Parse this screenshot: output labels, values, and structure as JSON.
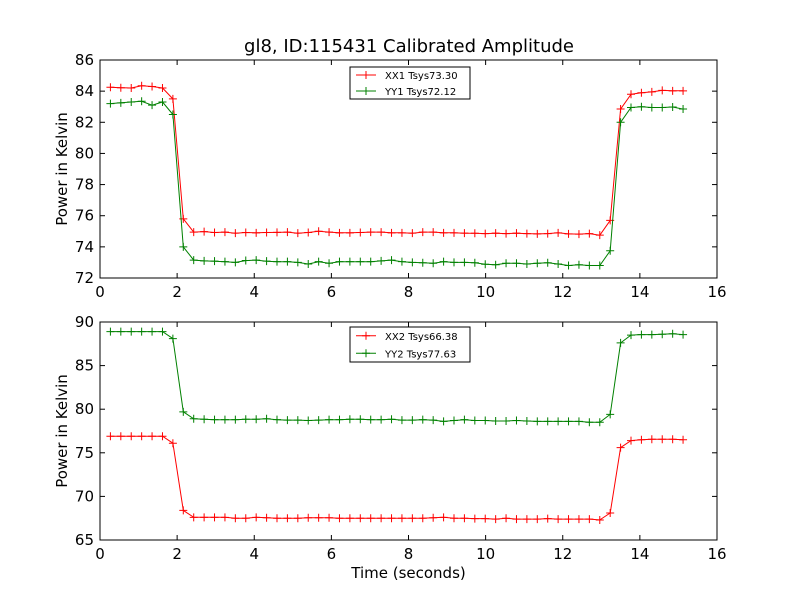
{
  "figure": {
    "title": "gl8, ID:115431 Calibrated Amplitude"
  },
  "chart_data": [
    {
      "type": "line",
      "ylabel": "Power in Kelvin",
      "xlabel": "",
      "xlim": [
        0,
        16
      ],
      "ylim": [
        72,
        86
      ],
      "xticks": [
        0,
        2,
        4,
        6,
        8,
        10,
        12,
        14,
        16
      ],
      "yticks": [
        72,
        74,
        76,
        78,
        80,
        82,
        84,
        86
      ],
      "legend_position": "top-center",
      "grid": false,
      "x": [
        0.27,
        0.54,
        0.81,
        1.08,
        1.35,
        1.62,
        1.89,
        2.16,
        2.43,
        2.7,
        2.97,
        3.24,
        3.51,
        3.78,
        4.05,
        4.32,
        4.59,
        4.86,
        5.13,
        5.4,
        5.67,
        5.94,
        6.21,
        6.48,
        6.75,
        7.02,
        7.29,
        7.56,
        7.83,
        8.1,
        8.37,
        8.64,
        8.91,
        9.18,
        9.45,
        9.72,
        9.99,
        10.26,
        10.53,
        10.8,
        11.07,
        11.34,
        11.61,
        11.88,
        12.15,
        12.42,
        12.69,
        12.96,
        13.23,
        13.5,
        13.77,
        14.04,
        14.31,
        14.58,
        14.85,
        15.12
      ],
      "series": [
        {
          "name": "XX1 Tsys73.30",
          "color": "#ff0000",
          "values": [
            84.25,
            84.22,
            84.2,
            84.35,
            84.3,
            84.2,
            83.5,
            75.8,
            74.95,
            74.98,
            74.92,
            74.95,
            74.88,
            74.92,
            74.9,
            74.92,
            74.93,
            74.95,
            74.88,
            74.92,
            75.0,
            74.95,
            74.9,
            74.9,
            74.92,
            74.95,
            74.95,
            74.9,
            74.9,
            74.88,
            74.95,
            74.95,
            74.9,
            74.9,
            74.88,
            74.87,
            74.85,
            74.88,
            74.85,
            74.88,
            74.85,
            74.83,
            74.85,
            74.9,
            74.83,
            74.82,
            74.85,
            74.75,
            75.7,
            82.85,
            83.8,
            83.9,
            83.95,
            84.05,
            84.02,
            84.02
          ]
        },
        {
          "name": "YY1 Tsys72.12",
          "color": "#008000",
          "values": [
            83.2,
            83.25,
            83.3,
            83.35,
            83.1,
            83.3,
            82.5,
            74.0,
            73.15,
            73.1,
            73.08,
            73.05,
            73.0,
            73.12,
            73.15,
            73.08,
            73.05,
            73.05,
            73.0,
            72.9,
            73.05,
            72.95,
            73.05,
            73.05,
            73.05,
            73.05,
            73.1,
            73.15,
            73.05,
            73.0,
            72.98,
            72.95,
            73.05,
            73.0,
            73.0,
            72.98,
            72.88,
            72.85,
            72.95,
            72.95,
            72.9,
            72.95,
            72.98,
            72.9,
            72.8,
            72.85,
            72.8,
            72.8,
            73.75,
            82.0,
            82.95,
            83.0,
            82.95,
            82.95,
            82.98,
            82.85
          ]
        }
      ]
    },
    {
      "type": "line",
      "ylabel": "Power in Kelvin",
      "xlabel": "Time (seconds)",
      "xlim": [
        0,
        16
      ],
      "ylim": [
        65,
        90
      ],
      "xticks": [
        0,
        2,
        4,
        6,
        8,
        10,
        12,
        14,
        16
      ],
      "yticks": [
        65,
        70,
        75,
        80,
        85,
        90
      ],
      "legend_position": "top-center",
      "grid": false,
      "x": [
        0.27,
        0.54,
        0.81,
        1.08,
        1.35,
        1.62,
        1.89,
        2.16,
        2.43,
        2.7,
        2.97,
        3.24,
        3.51,
        3.78,
        4.05,
        4.32,
        4.59,
        4.86,
        5.13,
        5.4,
        5.67,
        5.94,
        6.21,
        6.48,
        6.75,
        7.02,
        7.29,
        7.56,
        7.83,
        8.1,
        8.37,
        8.64,
        8.91,
        9.18,
        9.45,
        9.72,
        9.99,
        10.26,
        10.53,
        10.8,
        11.07,
        11.34,
        11.61,
        11.88,
        12.15,
        12.42,
        12.69,
        12.96,
        13.23,
        13.5,
        13.77,
        14.04,
        14.31,
        14.58,
        14.85,
        15.12
      ],
      "series": [
        {
          "name": "XX2 Tsys66.38",
          "color": "#ff0000",
          "values": [
            76.9,
            76.9,
            76.9,
            76.9,
            76.9,
            76.9,
            76.1,
            68.4,
            67.6,
            67.6,
            67.6,
            67.6,
            67.5,
            67.5,
            67.6,
            67.55,
            67.5,
            67.5,
            67.5,
            67.55,
            67.55,
            67.55,
            67.5,
            67.5,
            67.5,
            67.5,
            67.5,
            67.5,
            67.5,
            67.5,
            67.5,
            67.55,
            67.6,
            67.5,
            67.5,
            67.45,
            67.45,
            67.4,
            67.5,
            67.4,
            67.4,
            67.4,
            67.45,
            67.4,
            67.4,
            67.4,
            67.4,
            67.3,
            68.1,
            75.6,
            76.4,
            76.5,
            76.55,
            76.55,
            76.55,
            76.5
          ]
        },
        {
          "name": "YY2 Tsys77.63",
          "color": "#008000",
          "values": [
            88.9,
            88.9,
            88.9,
            88.9,
            88.9,
            88.9,
            88.1,
            79.7,
            78.9,
            78.85,
            78.8,
            78.8,
            78.8,
            78.85,
            78.85,
            78.9,
            78.8,
            78.75,
            78.75,
            78.7,
            78.75,
            78.8,
            78.8,
            78.85,
            78.85,
            78.8,
            78.8,
            78.85,
            78.75,
            78.75,
            78.8,
            78.75,
            78.6,
            78.7,
            78.8,
            78.7,
            78.7,
            78.65,
            78.65,
            78.7,
            78.65,
            78.6,
            78.6,
            78.6,
            78.6,
            78.6,
            78.5,
            78.5,
            79.4,
            87.6,
            88.5,
            88.55,
            88.55,
            88.6,
            88.65,
            88.55
          ]
        }
      ]
    }
  ]
}
